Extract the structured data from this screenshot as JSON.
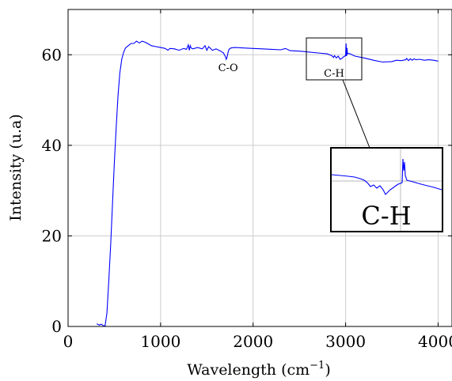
{
  "chart_data": {
    "type": "line",
    "xlabel": "Wavelength (cm",
    "xlabel_sup": "−1",
    "xlabel_close": ")",
    "ylabel": "Intensity (u.a)",
    "xlim": [
      0,
      4150
    ],
    "ylim": [
      0,
      70
    ],
    "xticks": [
      0,
      1000,
      2000,
      3000,
      4000
    ],
    "yticks": [
      0,
      20,
      40,
      60
    ],
    "grid": true,
    "line_color": "#0000ff",
    "series": [
      {
        "x": [
          310,
          340,
          360,
          380,
          400,
          420,
          440,
          460,
          480,
          500,
          520,
          540,
          560,
          580,
          600,
          620,
          650,
          680,
          710,
          740,
          770,
          800,
          830,
          860,
          900,
          950,
          1000,
          1050,
          1080,
          1100,
          1150,
          1200,
          1250,
          1280,
          1300,
          1310,
          1320,
          1330,
          1350,
          1400,
          1450,
          1480,
          1500,
          1520,
          1560,
          1600,
          1650,
          1680,
          1700,
          1710,
          1720,
          1730,
          1740,
          1760,
          1800,
          1900,
          2000,
          2100,
          2200,
          2300,
          2350,
          2400,
          2500,
          2600,
          2700,
          2800,
          2850,
          2870,
          2880,
          2900,
          2920,
          2940,
          2960,
          2980,
          3000,
          3005,
          3010,
          3015,
          3020,
          3030,
          3050,
          3100,
          3200,
          3300,
          3400,
          3500,
          3550,
          3600,
          3650,
          3660,
          3680,
          3700,
          3720,
          3740,
          3760,
          3800,
          3850,
          3900,
          3950,
          4000
        ],
        "y": [
          0.6,
          0.3,
          0.5,
          0.2,
          0.1,
          3,
          10,
          18,
          27,
          36,
          44,
          51,
          56,
          59,
          60.5,
          61.5,
          62,
          62.5,
          62.5,
          63,
          62.6,
          63,
          62.8,
          62.5,
          62,
          61.8,
          61.6,
          61.4,
          61.0,
          61.4,
          61.3,
          61.0,
          61.4,
          61.2,
          62.2,
          61.0,
          62.0,
          61.5,
          61.3,
          61.6,
          61.3,
          62.0,
          61.0,
          61.8,
          61.0,
          61.3,
          60.8,
          60.4,
          59.6,
          59.0,
          59.6,
          60.6,
          61.2,
          61.5,
          61.6,
          61.5,
          61.4,
          61.3,
          61.2,
          61.1,
          61.4,
          60.9,
          60.8,
          60.6,
          60.4,
          60.2,
          59.8,
          59.4,
          59.8,
          59.3,
          59.7,
          59.0,
          59.2,
          59.6,
          59.8,
          62.5,
          59.7,
          61.5,
          60.2,
          60.3,
          60.2,
          59.7,
          59.3,
          58.8,
          58.4,
          58.5,
          58.8,
          58.7,
          58.9,
          59.2,
          58.7,
          59.1,
          58.8,
          59.1,
          58.9,
          59.0,
          58.8,
          58.9,
          58.8,
          58.6
        ]
      }
    ],
    "annotations": [
      {
        "text": "C-O",
        "x": 1730,
        "y": 59
      },
      {
        "text": "C-H",
        "x": 2950,
        "y": 57
      }
    ],
    "inset": {
      "label": "C-H"
    }
  }
}
